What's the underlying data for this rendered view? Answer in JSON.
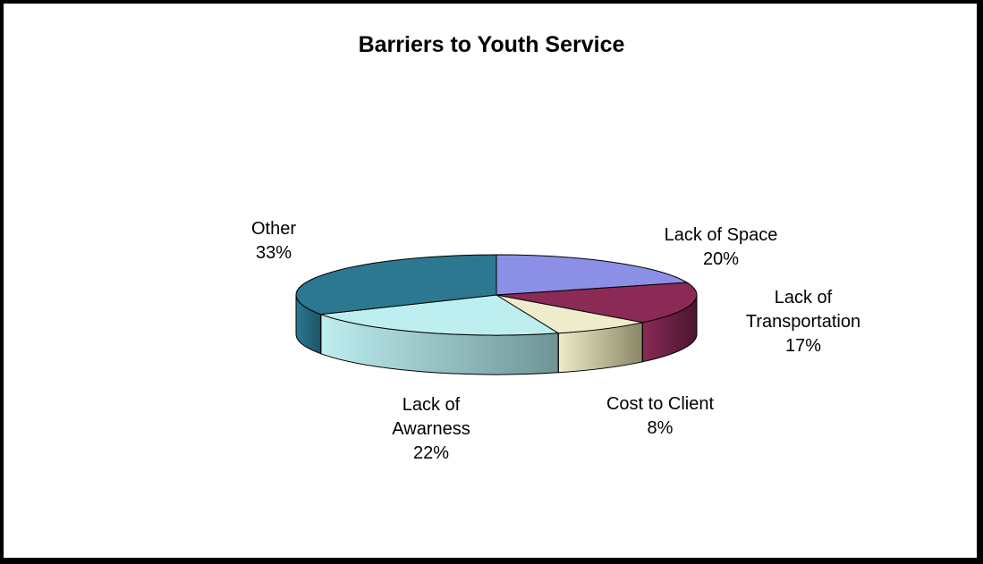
{
  "chart_data": {
    "type": "pie",
    "title": "Barriers to Youth Service",
    "three_d": true,
    "slices": [
      {
        "label_lines": [
          "Lack of Space"
        ],
        "value": 20,
        "pct_label": "20%",
        "color": "#8b8fe6",
        "side_color": "#5e62b0"
      },
      {
        "label_lines": [
          "Lack of",
          "Transportation"
        ],
        "value": 17,
        "pct_label": "17%",
        "color": "#8a2a55",
        "side_color": "#4a1530"
      },
      {
        "label_lines": [
          "Cost to Client"
        ],
        "value": 8,
        "pct_label": "8%",
        "color": "#efeccb",
        "side_color": "#8a8766"
      },
      {
        "label_lines": [
          "Lack of",
          "Awarness"
        ],
        "value": 22,
        "pct_label": "22%",
        "color": "#bdeef0",
        "side_color": "#6f9496"
      },
      {
        "label_lines": [
          "Other"
        ],
        "value": 33,
        "pct_label": "33%",
        "color": "#2b7890",
        "side_color": "#1c5566"
      }
    ]
  }
}
